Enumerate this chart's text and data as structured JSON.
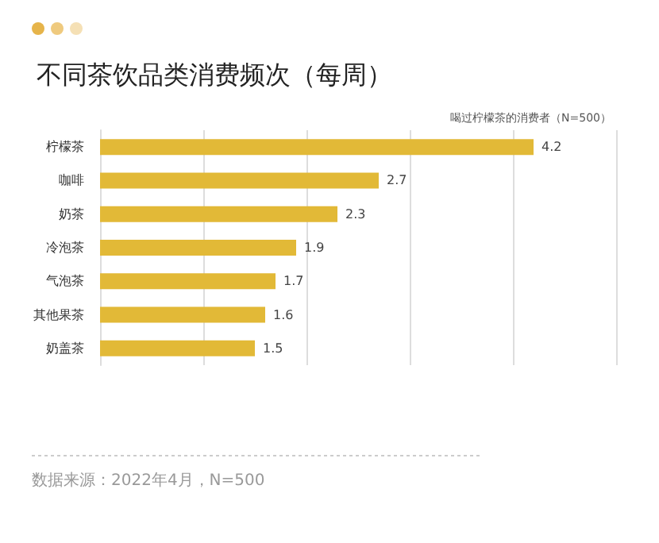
{
  "chart_data": {
    "type": "bar",
    "orientation": "horizontal",
    "title": "不同茶饮品类消费频次（每周）",
    "subtitle": "喝过柠檬茶的消费者（N=500）",
    "categories": [
      "柠檬茶",
      "咖啡",
      "奶茶",
      "冷泡茶",
      "气泡茶",
      "其他果茶",
      "奶盖茶"
    ],
    "values": [
      4.2,
      2.7,
      2.3,
      1.9,
      1.7,
      1.6,
      1.5
    ],
    "color": "#e2b937",
    "grid": "x",
    "tick_labels": "y",
    "data_labels": true,
    "annotations": [
      "数据来源：2022年4月，N=500"
    ]
  }
}
